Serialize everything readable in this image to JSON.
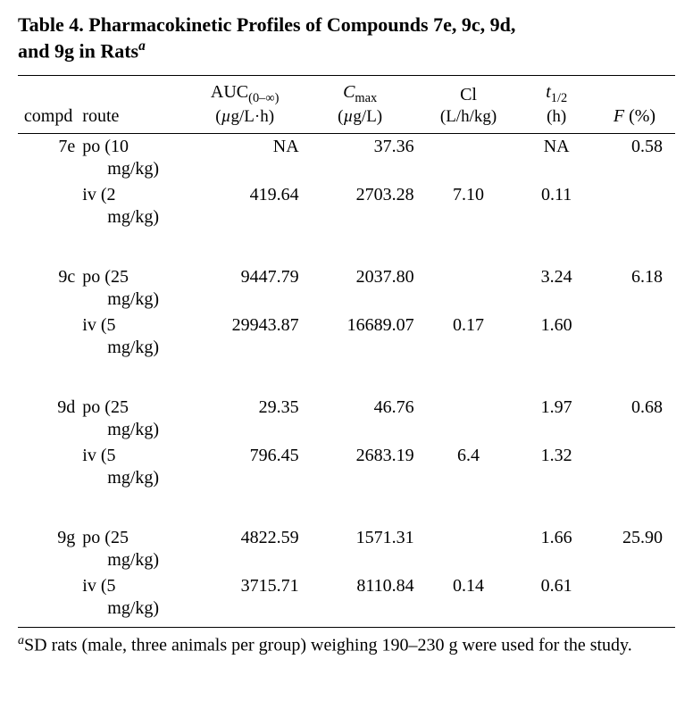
{
  "title_line1": "Table 4. Pharmacokinetic Profiles of Compounds 7e, 9c, 9d,",
  "title_line2_prefix": "and 9g in Rats",
  "title_footref": "a",
  "columns": {
    "compd": "compd",
    "route": "route",
    "auc_top": "AUC",
    "auc_sub": "(0–∞)",
    "auc_unit_pre": "(",
    "auc_unit_mu": "µ",
    "auc_unit_rest": "g/L·h)",
    "cmax_top_C": "C",
    "cmax_top_sub": "max",
    "cmax_unit_pre": "(",
    "cmax_unit_mu": "µ",
    "cmax_unit_rest": "g/L)",
    "cl_top": "Cl",
    "cl_unit": "(L/h/kg)",
    "thalf_top_t": "t",
    "thalf_top_sub": "1/2",
    "thalf_unit": "(h)",
    "f_label_F": "F",
    "f_label_rest": " (%)"
  },
  "groups": [
    {
      "compd": "7e",
      "rows": [
        {
          "route_pre": "po",
          "route_dose": "(10",
          "route_unit": "mg/kg)",
          "auc": "NA",
          "cmax": "37.36",
          "cl": "",
          "thalf": "NA",
          "f": "0.58"
        },
        {
          "route_pre": "iv",
          "route_dose": "(2",
          "route_unit": "mg/kg)",
          "auc": "419.64",
          "cmax": "2703.28",
          "cl": "7.10",
          "thalf": "0.11",
          "f": ""
        }
      ]
    },
    {
      "compd": "9c",
      "rows": [
        {
          "route_pre": "po",
          "route_dose": "(25",
          "route_unit": "mg/kg)",
          "auc": "9447.79",
          "cmax": "2037.80",
          "cl": "",
          "thalf": "3.24",
          "f": "6.18"
        },
        {
          "route_pre": "iv",
          "route_dose": "(5",
          "route_unit": "mg/kg)",
          "auc": "29943.87",
          "cmax": "16689.07",
          "cl": "0.17",
          "thalf": "1.60",
          "f": ""
        }
      ]
    },
    {
      "compd": "9d",
      "rows": [
        {
          "route_pre": "po",
          "route_dose": "(25",
          "route_unit": "mg/kg)",
          "auc": "29.35",
          "cmax": "46.76",
          "cl": "",
          "thalf": "1.97",
          "f": "0.68"
        },
        {
          "route_pre": "iv",
          "route_dose": "(5",
          "route_unit": "mg/kg)",
          "auc": "796.45",
          "cmax": "2683.19",
          "cl": "6.4",
          "thalf": "1.32",
          "f": ""
        }
      ]
    },
    {
      "compd": "9g",
      "rows": [
        {
          "route_pre": "po",
          "route_dose": "(25",
          "route_unit": "mg/kg)",
          "auc": "4822.59",
          "cmax": "1571.31",
          "cl": "",
          "thalf": "1.66",
          "f": "25.90"
        },
        {
          "route_pre": "iv",
          "route_dose": "(5",
          "route_unit": "mg/kg)",
          "auc": "3715.71",
          "cmax": "8110.84",
          "cl": "0.14",
          "thalf": "0.61",
          "f": ""
        }
      ]
    }
  ],
  "footnote_marker": "a",
  "footnote_text": "SD rats (male, three animals per group) weighing 190–230 g were used for the study."
}
